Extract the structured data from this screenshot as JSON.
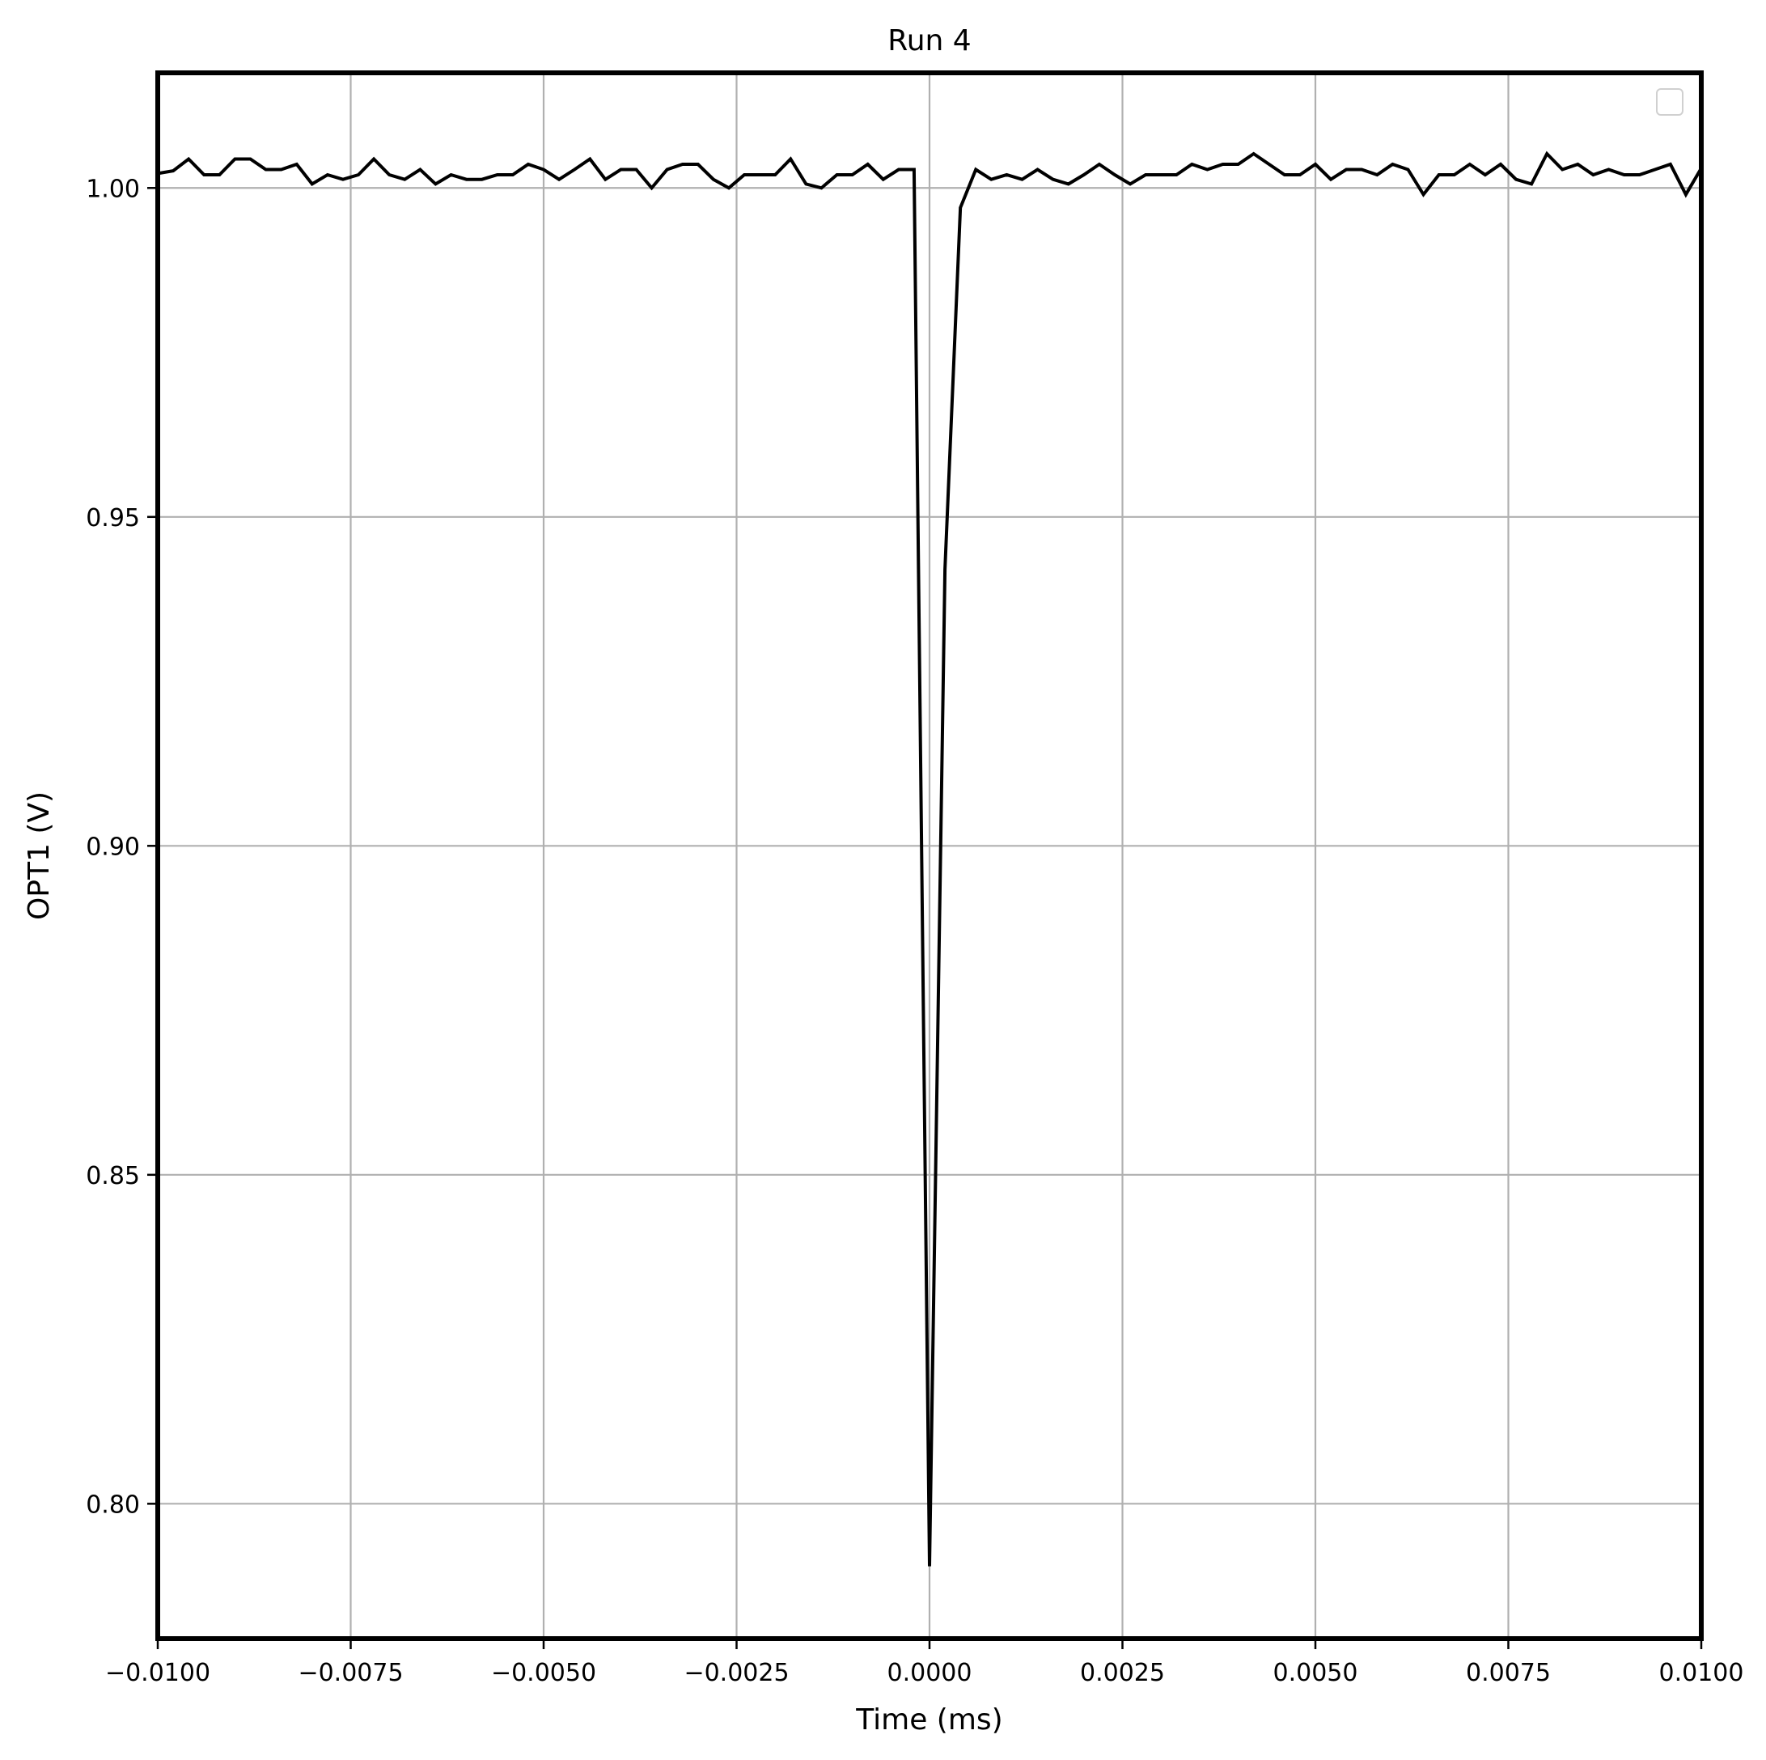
{
  "chart_data": {
    "type": "line",
    "title": "Run 4",
    "xlabel": "Time (ms)",
    "ylabel": "OPT1 (V)",
    "xlim": [
      -0.01,
      0.01
    ],
    "ylim": [
      0.7795,
      1.0175
    ],
    "xticks": [
      -0.01,
      -0.0075,
      -0.005,
      -0.0025,
      0.0,
      0.0025,
      0.005,
      0.0075,
      0.01
    ],
    "xtick_labels": [
      "−0.0100",
      "−0.0075",
      "−0.0050",
      "−0.0025",
      "0.0000",
      "0.0025",
      "0.0050",
      "0.0075",
      "0.0100"
    ],
    "yticks": [
      0.8,
      0.85,
      0.9,
      0.95,
      1.0
    ],
    "ytick_labels": [
      "0.80",
      "0.85",
      "0.90",
      "0.95",
      "1.00"
    ],
    "grid": true,
    "legend": "top-right",
    "line_color": "#000000",
    "series": [
      {
        "x": [
          -0.01,
          -0.0098,
          -0.0096,
          -0.0094,
          -0.0092,
          -0.009,
          -0.0088,
          -0.0086,
          -0.0084,
          -0.0082,
          -0.008,
          -0.0078,
          -0.0076,
          -0.0074,
          -0.0072,
          -0.007,
          -0.0068,
          -0.0066,
          -0.0064,
          -0.0062,
          -0.006,
          -0.0058,
          -0.0056,
          -0.0054,
          -0.0052,
          -0.005,
          -0.0048,
          -0.0046,
          -0.0044,
          -0.0042,
          -0.004,
          -0.0038,
          -0.0036,
          -0.0034,
          -0.0032,
          -0.003,
          -0.0028,
          -0.0026,
          -0.0024,
          -0.0022,
          -0.002,
          -0.0018,
          -0.0016,
          -0.0014,
          -0.0012,
          -0.001,
          -0.0008,
          -0.0006,
          -0.0004,
          -0.0002,
          0.0,
          0.0002,
          0.0004,
          0.0006,
          0.0008,
          0.001,
          0.0012,
          0.0014,
          0.0016,
          0.0018,
          0.002,
          0.0022,
          0.0024,
          0.0026,
          0.0028,
          0.003,
          0.0032,
          0.0034,
          0.0036,
          0.0038,
          0.004,
          0.0042,
          0.0044,
          0.0046,
          0.0048,
          0.005,
          0.0052,
          0.0054,
          0.0056,
          0.0058,
          0.006,
          0.0062,
          0.0064,
          0.0066,
          0.0068,
          0.007,
          0.0072,
          0.0074,
          0.0076,
          0.0078,
          0.008,
          0.0082,
          0.0084,
          0.0086,
          0.0088,
          0.009,
          0.0092,
          0.0094,
          0.0096,
          0.0098,
          0.01
        ],
        "y": [
          1.0022,
          1.0026,
          1.0044,
          1.002,
          1.002,
          1.0044,
          1.0044,
          1.0028,
          1.0028,
          1.0036,
          1.0006,
          1.002,
          1.0013,
          1.002,
          1.0044,
          1.002,
          1.0013,
          1.0028,
          1.0006,
          1.002,
          1.0013,
          1.0013,
          1.002,
          1.002,
          1.0036,
          1.0028,
          1.0013,
          1.0028,
          1.0044,
          1.0013,
          1.0028,
          1.0028,
          1.0,
          1.0028,
          1.0036,
          1.0036,
          1.0013,
          1.0,
          1.002,
          1.002,
          1.002,
          1.0044,
          1.0006,
          1.0,
          1.002,
          1.002,
          1.0036,
          1.0013,
          1.0028,
          1.0028,
          0.7905,
          0.942,
          0.997,
          1.0028,
          1.0013,
          1.002,
          1.0013,
          1.0028,
          1.0013,
          1.0006,
          1.002,
          1.0036,
          1.002,
          1.0006,
          1.002,
          1.002,
          1.002,
          1.0036,
          1.0028,
          1.0036,
          1.0036,
          1.0052,
          1.0036,
          1.002,
          1.002,
          1.0036,
          1.0013,
          1.0028,
          1.0028,
          1.002,
          1.0036,
          1.0028,
          0.999,
          1.002,
          1.002,
          1.0036,
          1.002,
          1.0036,
          1.0013,
          1.0006,
          1.0052,
          1.0028,
          1.0036,
          1.002,
          1.0028,
          1.002,
          1.002,
          1.0028,
          1.0036,
          0.999,
          1.003
        ]
      }
    ]
  }
}
